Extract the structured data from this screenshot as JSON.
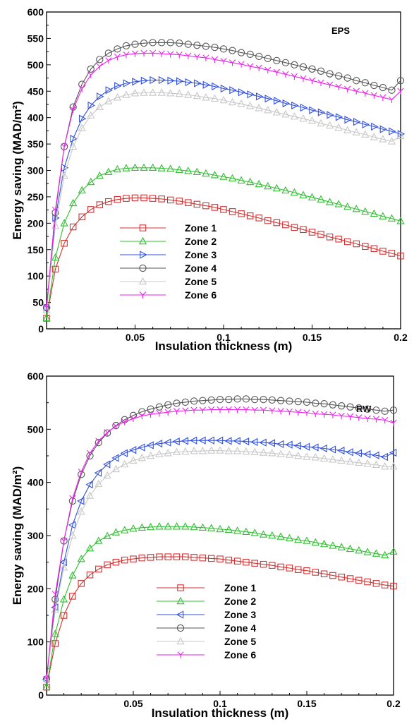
{
  "colors": {
    "zone1": "#d23232",
    "zone2": "#30c030",
    "zone3": "#3050e0",
    "zone4": "#555555",
    "zone5": "#c8c8c8",
    "zone6": "#ee22ee"
  },
  "chart_data": [
    {
      "type": "line",
      "annotation": "EPS",
      "xlabel": "Insulation thickness (m)",
      "ylabel": "Energy saving (MAD/m²)",
      "xlim": [
        0,
        0.2
      ],
      "ylim": [
        0,
        600
      ],
      "xticks": [
        "0.05",
        "0.1",
        "0.15",
        "0.2"
      ],
      "yticks": [
        "0",
        "50",
        "100",
        "150",
        "200",
        "250",
        "300",
        "350",
        "400",
        "450",
        "500",
        "550",
        "600"
      ],
      "x": [
        0,
        0.005,
        0.01,
        0.015,
        0.02,
        0.025,
        0.03,
        0.035,
        0.04,
        0.045,
        0.05,
        0.055,
        0.06,
        0.065,
        0.07,
        0.075,
        0.08,
        0.085,
        0.09,
        0.095,
        0.1,
        0.105,
        0.11,
        0.115,
        0.12,
        0.125,
        0.13,
        0.135,
        0.14,
        0.145,
        0.15,
        0.155,
        0.16,
        0.165,
        0.17,
        0.175,
        0.18,
        0.185,
        0.19,
        0.195,
        0.2
      ],
      "series": [
        {
          "name": "Zone 1",
          "marker": "square",
          "color": "zone1",
          "values": [
            20,
            113,
            162,
            193,
            212,
            226,
            235,
            241,
            245,
            247,
            248,
            248,
            247,
            246,
            244,
            242,
            239,
            236,
            233,
            230,
            226,
            222,
            218,
            214,
            210,
            205,
            201,
            197,
            192,
            188,
            183,
            179,
            174,
            170,
            165,
            161,
            156,
            152,
            147,
            143,
            138
          ]
        },
        {
          "name": "Zone 2",
          "marker": "triangle-up",
          "color": "zone2",
          "values": [
            20,
            135,
            200,
            238,
            262,
            278,
            290,
            297,
            302,
            304,
            305,
            305,
            305,
            304,
            303,
            301,
            299,
            297,
            294,
            291,
            288,
            285,
            281,
            278,
            274,
            270,
            266,
            262,
            258,
            253,
            249,
            245,
            240,
            236,
            231,
            227,
            222,
            218,
            213,
            209,
            204
          ]
        },
        {
          "name": "Zone 3",
          "marker": "triangle-right",
          "color": "zone3",
          "values": [
            40,
            210,
            305,
            360,
            398,
            423,
            440,
            452,
            460,
            465,
            468,
            470,
            471,
            471,
            470,
            469,
            467,
            465,
            462,
            459,
            455,
            452,
            448,
            444,
            440,
            436,
            432,
            427,
            423,
            419,
            414,
            410,
            405,
            401,
            396,
            392,
            387,
            383,
            378,
            374,
            369
          ]
        },
        {
          "name": "Zone 4",
          "marker": "circle",
          "color": "zone4",
          "values": [
            40,
            220,
            345,
            420,
            463,
            492,
            510,
            522,
            530,
            536,
            539,
            541,
            542,
            542,
            542,
            541,
            539,
            537,
            535,
            533,
            530,
            527,
            523,
            520,
            516,
            512,
            508,
            504,
            500,
            496,
            492,
            488,
            483,
            479,
            475,
            470,
            466,
            461,
            457,
            452,
            470
          ]
        },
        {
          "name": "Zone 5",
          "marker": "triangle-up",
          "color": "zone5",
          "values": [
            35,
            195,
            290,
            345,
            380,
            404,
            420,
            431,
            438,
            443,
            446,
            447,
            447,
            447,
            446,
            445,
            443,
            441,
            438,
            436,
            433,
            429,
            426,
            422,
            418,
            414,
            410,
            406,
            402,
            398,
            394,
            389,
            385,
            381,
            376,
            372,
            368,
            363,
            359,
            355,
            365
          ]
        },
        {
          "name": "Zone 6",
          "marker": "y",
          "color": "zone6",
          "values": [
            40,
            225,
            345,
            415,
            455,
            481,
            497,
            508,
            515,
            519,
            521,
            522,
            522,
            521,
            520,
            519,
            517,
            515,
            513,
            510,
            507,
            504,
            501,
            497,
            494,
            490,
            486,
            482,
            478,
            474,
            470,
            466,
            462,
            458,
            454,
            450,
            446,
            442,
            438,
            434,
            450
          ]
        }
      ]
    },
    {
      "type": "line",
      "annotation": "RW",
      "xlabel": "Insulation thickness (m)",
      "ylabel": "Energy saving (MAD/m²)",
      "xlim": [
        0,
        0.2
      ],
      "ylim": [
        0,
        600
      ],
      "xticks": [
        "0.05",
        "0.1",
        "0.15",
        "0.2"
      ],
      "yticks": [
        "0",
        "100",
        "200",
        "300",
        "400",
        "500",
        "600"
      ],
      "x": [
        0,
        0.005,
        0.01,
        0.015,
        0.02,
        0.025,
        0.03,
        0.035,
        0.04,
        0.045,
        0.05,
        0.055,
        0.06,
        0.065,
        0.07,
        0.075,
        0.08,
        0.085,
        0.09,
        0.095,
        0.1,
        0.105,
        0.11,
        0.115,
        0.12,
        0.125,
        0.13,
        0.135,
        0.14,
        0.145,
        0.15,
        0.155,
        0.16,
        0.165,
        0.17,
        0.175,
        0.18,
        0.185,
        0.19,
        0.195,
        0.2
      ],
      "series": [
        {
          "name": "Zone 1",
          "marker": "square",
          "color": "zone1",
          "values": [
            15,
            97,
            150,
            186,
            210,
            226,
            237,
            245,
            250,
            254,
            256,
            258,
            259,
            260,
            260,
            260,
            260,
            259,
            258,
            257,
            256,
            254,
            252,
            250,
            248,
            246,
            244,
            241,
            239,
            236,
            234,
            231,
            228,
            225,
            222,
            219,
            216,
            213,
            210,
            207,
            205
          ]
        },
        {
          "name": "Zone 2",
          "marker": "triangle-up",
          "color": "zone2",
          "values": [
            15,
            115,
            180,
            225,
            256,
            276,
            290,
            299,
            306,
            310,
            313,
            315,
            316,
            317,
            317,
            317,
            317,
            316,
            315,
            314,
            312,
            311,
            309,
            307,
            305,
            302,
            300,
            298,
            295,
            292,
            290,
            287,
            284,
            281,
            278,
            275,
            272,
            269,
            266,
            263,
            270
          ]
        },
        {
          "name": "Zone 3",
          "marker": "triangle-left",
          "color": "zone3",
          "values": [
            30,
            165,
            250,
            320,
            365,
            396,
            418,
            434,
            446,
            455,
            461,
            466,
            470,
            473,
            475,
            477,
            478,
            479,
            479,
            479,
            479,
            478,
            478,
            477,
            476,
            475,
            474,
            472,
            471,
            469,
            467,
            466,
            464,
            462,
            460,
            457,
            455,
            453,
            451,
            448,
            456
          ]
        },
        {
          "name": "Zone 4",
          "marker": "circle",
          "color": "zone4",
          "values": [
            30,
            180,
            290,
            365,
            415,
            450,
            475,
            493,
            507,
            518,
            526,
            533,
            538,
            542,
            546,
            549,
            551,
            553,
            554,
            555,
            556,
            556,
            557,
            557,
            556,
            556,
            555,
            554,
            553,
            552,
            551,
            549,
            548,
            546,
            544,
            542,
            540,
            538,
            536,
            534,
            536
          ]
        },
        {
          "name": "Zone 5",
          "marker": "triangle-up",
          "color": "zone5",
          "values": [
            30,
            160,
            240,
            300,
            345,
            375,
            397,
            413,
            425,
            434,
            441,
            446,
            450,
            453,
            455,
            457,
            458,
            459,
            459,
            460,
            460,
            459,
            459,
            458,
            457,
            456,
            455,
            453,
            452,
            450,
            448,
            447,
            445,
            443,
            441,
            439,
            437,
            435,
            433,
            430,
            430
          ]
        },
        {
          "name": "Zone 6",
          "marker": "y",
          "color": "zone6",
          "values": [
            30,
            190,
            290,
            370,
            420,
            455,
            478,
            494,
            506,
            514,
            520,
            525,
            528,
            530,
            532,
            534,
            535,
            536,
            536,
            537,
            537,
            537,
            537,
            537,
            536,
            536,
            535,
            534,
            533,
            532,
            531,
            529,
            528,
            527,
            525,
            524,
            522,
            520,
            519,
            517,
            512
          ]
        }
      ]
    }
  ]
}
